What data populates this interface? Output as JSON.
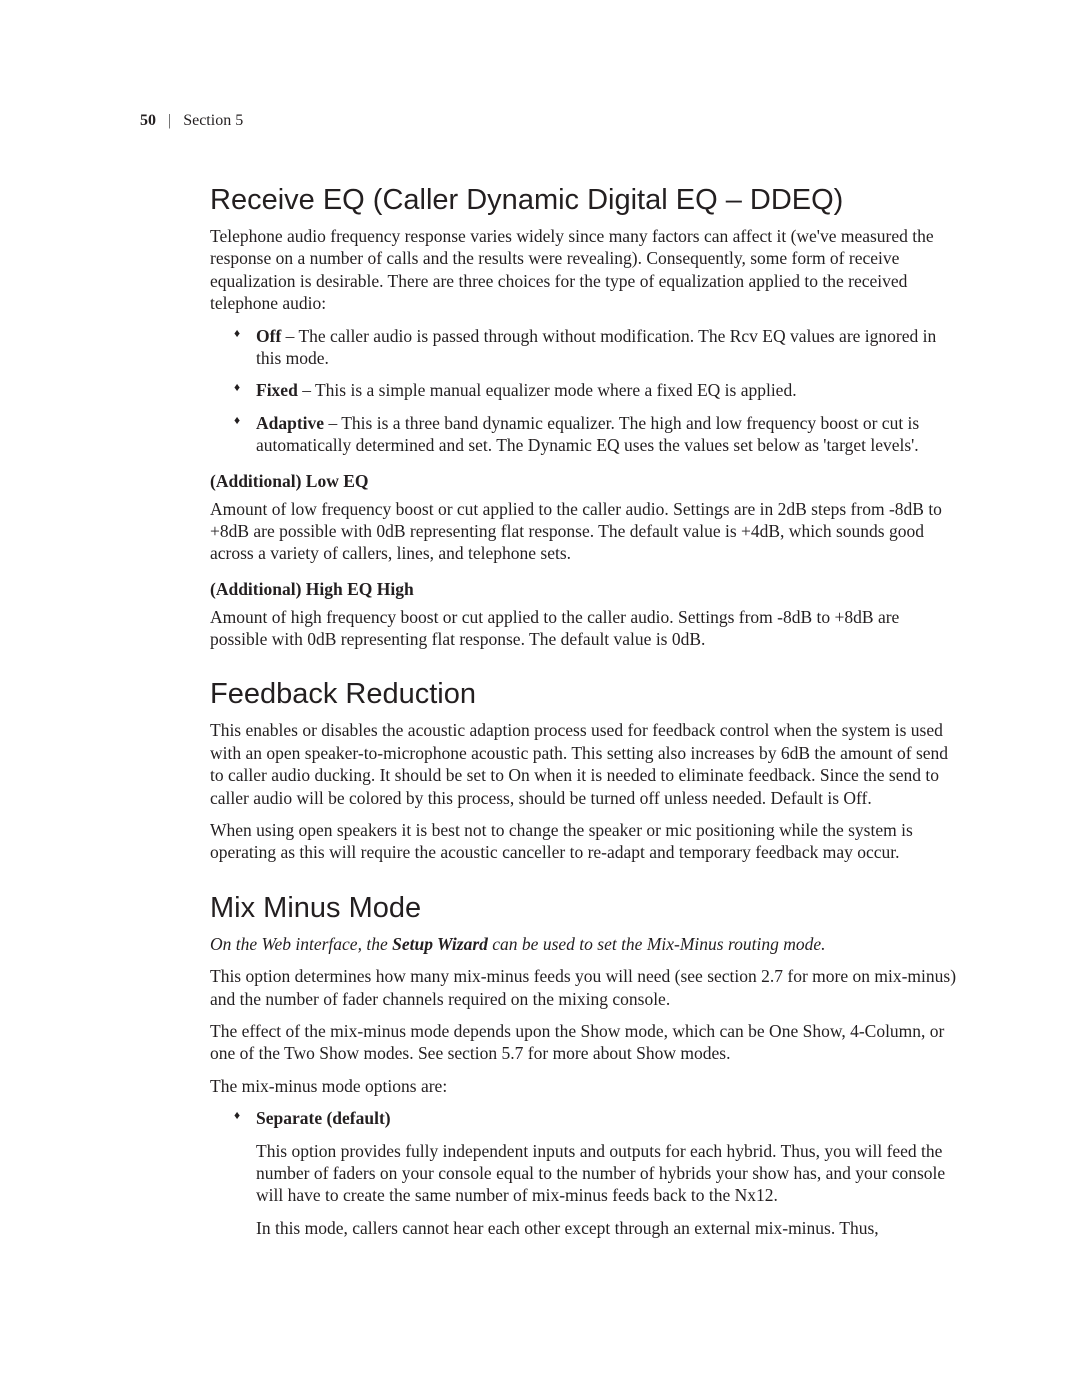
{
  "header": {
    "pagenum": "50",
    "separator": "|",
    "section": "Section 5"
  },
  "h_receive_eq": "Receive EQ (Caller Dynamic Digital EQ – DDEQ)",
  "p_receive_intro": "Telephone audio frequency response varies widely since many factors can affect it (we've measured the response on a number of calls and the results were revealing). Consequently, some form of receive equalization is desirable. There are three choices for the type of equalization applied to the received telephone audio:",
  "eq_options": {
    "off_label": "Off",
    "off_text": " – The caller audio is passed through without modification. The Rcv EQ values are ignored in this mode.",
    "fixed_label": "Fixed",
    "fixed_text": " – This is a simple manual equalizer mode where a fixed EQ is applied.",
    "adaptive_label": "Adaptive",
    "adaptive_text": " – This is a three band dynamic equalizer. The high and low frequency boost or cut is automatically determined and set. The Dynamic EQ uses the values set below as 'target levels'."
  },
  "low_eq_head": "(Additional) Low EQ",
  "low_eq_body": "Amount of low frequency boost or cut applied to the caller audio. Settings are in 2dB steps from -8dB to +8dB are possible with 0dB representing flat response. The default value is +4dB, which sounds good across a variety of callers, lines, and telephone sets.",
  "high_eq_head": "(Additional) High EQ High",
  "high_eq_body": "Amount of high frequency boost or cut applied to the caller audio. Settings from -8dB to +8dB are possible with 0dB representing flat response. The default value is 0dB.",
  "h_feedback": "Feedback Reduction",
  "p_feedback_1": "This enables or disables the acoustic adaption process used for feedback control when the system is used with an open speaker-to-microphone acoustic path. This setting also increases by 6dB the amount of send to caller audio ducking. It should be set to On when it is needed to eliminate feedback. Since the send to caller audio will be colored by this process, should be turned off unless needed. Default is Off.",
  "p_feedback_2": "When using open speakers it is best not to change the speaker or mic positioning while the system is operating as this will require the acoustic canceller to re-adapt and temporary feedback may occur.",
  "h_mixminus": "Mix Minus Mode",
  "mm_italic_pre": "On the Web interface, the ",
  "mm_italic_bold": "Setup Wizard",
  "mm_italic_post": " can be used to set the Mix-Minus routing mode.",
  "mm_p1": "This option determines how many mix-minus feeds you will need (see section 2.7 for more on mix-minus) and the number of fader channels required on the mixing console.",
  "mm_p2": "The effect of the mix-minus mode depends upon the Show mode, which can be One Show, 4-Column, or one of the Two Show modes.  See section 5.7 for more about Show modes.",
  "mm_p3": "The mix-minus mode options are:",
  "mm_sep_label": "Separate (default)",
  "mm_sep_p1": "This option provides fully independent inputs and outputs for each hybrid. Thus, you will feed the number of faders on your console equal to the number of hybrids your show has, and your console will have to create the same number of mix-minus feeds back to the Nx12.",
  "mm_sep_p2": "In this mode, callers cannot hear each other except through an external mix-minus. Thus,"
}
